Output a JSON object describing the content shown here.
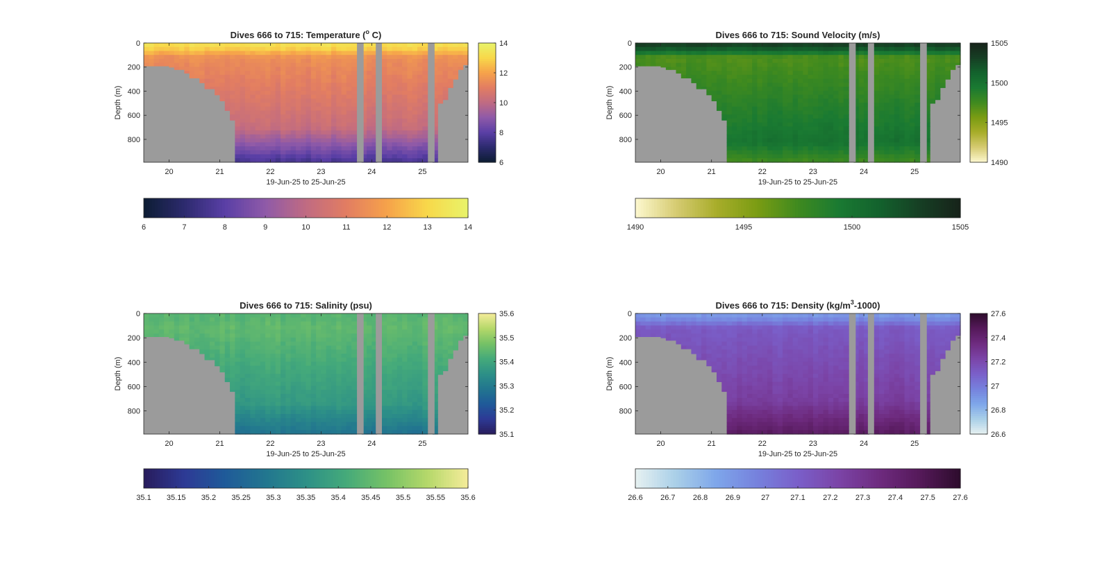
{
  "chart_data": [
    {
      "type": "heatmap",
      "id": "temperature",
      "title_main": "Dives 666 to 715: Temperature (",
      "title_sup": "o",
      "title_tail": " C)",
      "xlabel": "19-Jun-25 to 25-Jun-25",
      "ylabel": "Depth (m)",
      "x_ticks": [
        "20",
        "21",
        "22",
        "23",
        "24",
        "25"
      ],
      "y_ticks": [
        "0",
        "200",
        "400",
        "600",
        "800"
      ],
      "x_range": [
        19.5,
        25.9
      ],
      "y_range": [
        0,
        990
      ],
      "clim": [
        6,
        14
      ],
      "cbar_v_ticks": [
        "6",
        "8",
        "10",
        "12",
        "14"
      ],
      "cbar_h_ticks": [
        "6",
        "7",
        "8",
        "9",
        "10",
        "11",
        "12",
        "13",
        "14"
      ],
      "colormap": [
        "#0d1d33",
        "#2c2a6e",
        "#5a3fa6",
        "#8f5aa8",
        "#c06b82",
        "#e27d62",
        "#f6a24a",
        "#f8d84a",
        "#e8f46a"
      ],
      "field": {
        "surface": 13.2,
        "upper": 11.5,
        "mid": 10.2,
        "deep": 7.6,
        "deep_start": 700
      }
    },
    {
      "type": "heatmap",
      "id": "sound-velocity",
      "title_main": "Dives 666 to 715: Sound Velocity (m/s)",
      "title_sup": "",
      "title_tail": "",
      "xlabel": "19-Jun-25 to 25-Jun-25",
      "ylabel": "Depth (m)",
      "x_ticks": [
        "20",
        "21",
        "22",
        "23",
        "24",
        "25"
      ],
      "y_ticks": [
        "0",
        "200",
        "400",
        "600",
        "800"
      ],
      "x_range": [
        19.5,
        25.9
      ],
      "y_range": [
        0,
        990
      ],
      "clim": [
        1490,
        1505
      ],
      "cbar_v_ticks": [
        "1490",
        "1495",
        "1500",
        "1505"
      ],
      "cbar_h_ticks": [
        "1490",
        "1495",
        "1500",
        "1505"
      ],
      "colormap": [
        "#fdf8cf",
        "#d6cb72",
        "#a8ad2a",
        "#7a9c13",
        "#3f8a1f",
        "#1a7a32",
        "#13622d",
        "#163f24",
        "#17231a"
      ],
      "field": {
        "surface": 1503,
        "upper": 1497,
        "mid": 1500,
        "deep": 1497.5,
        "deep_start": 820
      }
    },
    {
      "type": "heatmap",
      "id": "salinity",
      "title_main": "Dives 666 to 715: Salinity (psu)",
      "title_sup": "",
      "title_tail": "",
      "xlabel": "19-Jun-25 to 25-Jun-25",
      "ylabel": "Depth (m)",
      "x_ticks": [
        "20",
        "21",
        "22",
        "23",
        "24",
        "25"
      ],
      "y_ticks": [
        "0",
        "200",
        "400",
        "600",
        "800"
      ],
      "x_range": [
        19.5,
        25.9
      ],
      "y_range": [
        0,
        990
      ],
      "clim": [
        35.1,
        35.6
      ],
      "cbar_v_ticks": [
        "35.1",
        "35.2",
        "35.3",
        "35.4",
        "35.5",
        "35.6"
      ],
      "cbar_h_ticks": [
        "35.1",
        "35.15",
        "35.2",
        "35.25",
        "35.3",
        "35.35",
        "35.4",
        "35.45",
        "35.5",
        "35.55",
        "35.6"
      ],
      "colormap": [
        "#281c5c",
        "#2d3a95",
        "#1f5a99",
        "#22768f",
        "#2d9087",
        "#45aa7a",
        "#76c266",
        "#b5d86a",
        "#f5ec9a"
      ],
      "field": {
        "surface": 35.44,
        "upper": 35.45,
        "mid": 35.37,
        "deep": 35.28,
        "deep_start": 750
      }
    },
    {
      "type": "heatmap",
      "id": "density",
      "title_main": "Dives 666 to 715: Density (kg/m",
      "title_sup": "3",
      "title_tail": "-1000)",
      "xlabel": "19-Jun-25 to 25-Jun-25",
      "ylabel": "Depth (m)",
      "x_ticks": [
        "20",
        "21",
        "22",
        "23",
        "24",
        "25"
      ],
      "y_ticks": [
        "0",
        "200",
        "400",
        "600",
        "800"
      ],
      "x_range": [
        19.5,
        25.9
      ],
      "y_range": [
        0,
        990
      ],
      "clim": [
        26.6,
        27.6
      ],
      "cbar_v_ticks": [
        "26.6",
        "26.8",
        "27",
        "27.2",
        "27.4",
        "27.6"
      ],
      "cbar_h_ticks": [
        "26.6",
        "26.7",
        "26.8",
        "26.9",
        "27",
        "27.1",
        "27.2",
        "27.3",
        "27.4",
        "27.5",
        "27.6"
      ],
      "colormap": [
        "#e6f1f1",
        "#a9cfe8",
        "#7ea6ea",
        "#7681dd",
        "#7a5fc9",
        "#7b44a7",
        "#6e2b7f",
        "#55195a",
        "#2d0c2c"
      ],
      "field": {
        "surface": 26.9,
        "upper": 27.12,
        "mid": 27.25,
        "deep": 27.45,
        "deep_start": 720
      }
    }
  ],
  "colors": {
    "mask": "#9b9b9b",
    "axis": "#262626"
  }
}
